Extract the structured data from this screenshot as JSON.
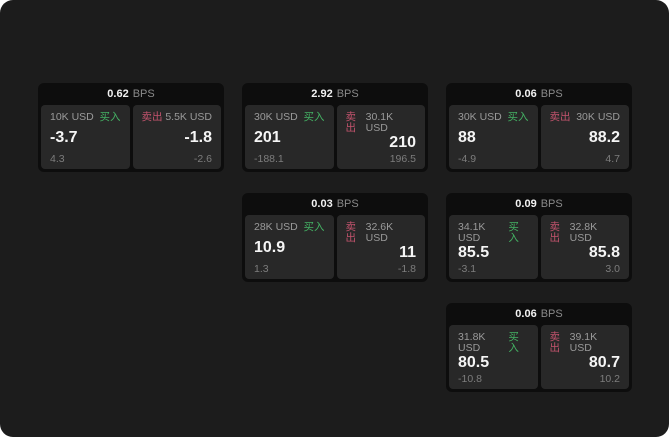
{
  "labels": {
    "bps_unit": "BPS",
    "buy": "买入",
    "sell": "卖出"
  },
  "colors": {
    "canvas_background": "#1c1c1c",
    "card_header_background": "#0d0d0d",
    "panel_background": "#282828",
    "buy_green": "#44b264",
    "sell_red": "#c2536d",
    "primary_text": "#f2f2f2",
    "muted_text": "#9a9a9a",
    "sub_text": "#7d7d7d"
  },
  "cards": [
    {
      "bps": "0.62",
      "buy": {
        "size": "10K USD",
        "price": "-3.7",
        "sub": "4.3"
      },
      "sell": {
        "size": "5.5K USD",
        "price": "-1.8",
        "sub": "-2.6"
      }
    },
    {
      "bps": "2.92",
      "buy": {
        "size": "30K USD",
        "price": "201",
        "sub": "-188.1"
      },
      "sell": {
        "size": "30.1K USD",
        "price": "210",
        "sub": "196.5"
      }
    },
    {
      "bps": "0.06",
      "buy": {
        "size": "30K USD",
        "price": "88",
        "sub": "-4.9"
      },
      "sell": {
        "size": "30K USD",
        "price": "88.2",
        "sub": "4.7"
      }
    },
    {
      "bps": "0.03",
      "buy": {
        "size": "28K USD",
        "price": "10.9",
        "sub": "1.3"
      },
      "sell": {
        "size": "32.6K USD",
        "price": "11",
        "sub": "-1.8"
      }
    },
    {
      "bps": "0.09",
      "buy": {
        "size": "34.1K USD",
        "price": "85.5",
        "sub": "-3.1"
      },
      "sell": {
        "size": "32.8K USD",
        "price": "85.8",
        "sub": "3.0"
      }
    },
    {
      "bps": "0.06",
      "buy": {
        "size": "31.8K USD",
        "price": "80.5",
        "sub": "-10.8"
      },
      "sell": {
        "size": "39.1K USD",
        "price": "80.7",
        "sub": "10.2"
      }
    }
  ]
}
